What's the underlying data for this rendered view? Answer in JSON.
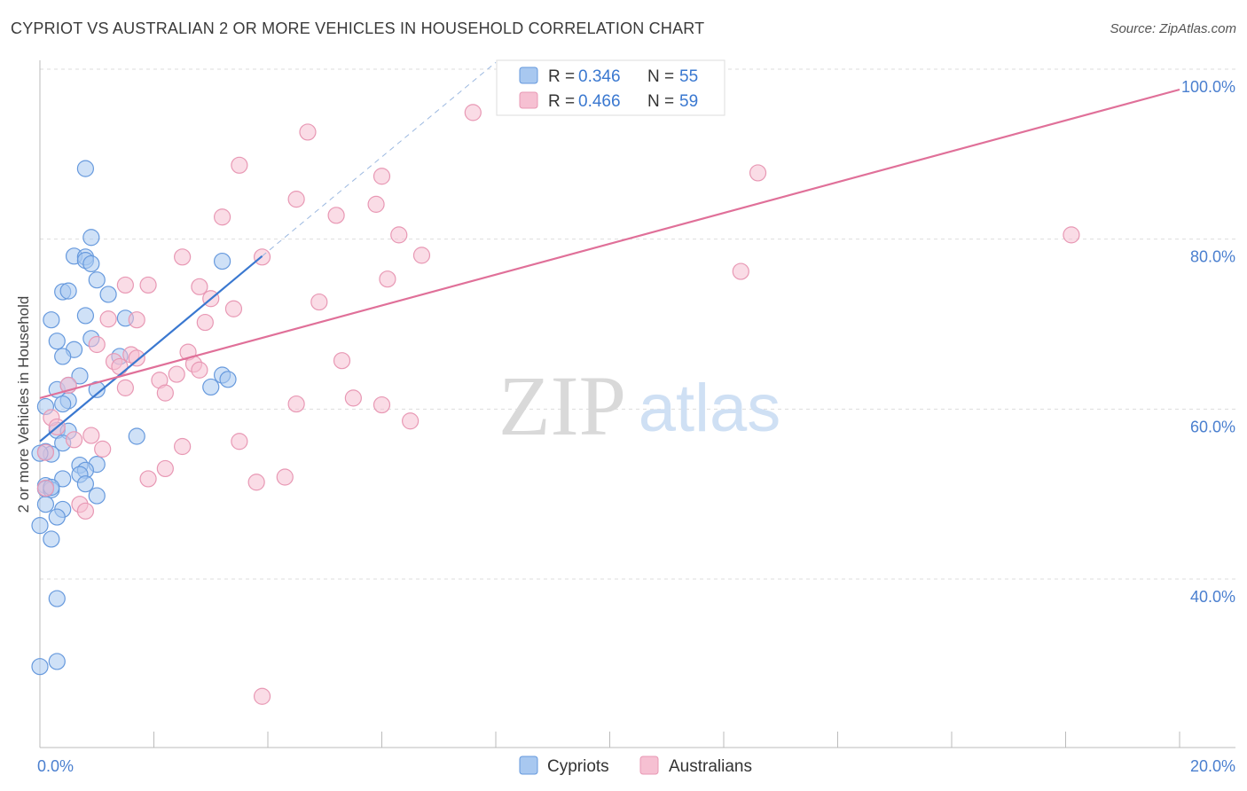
{
  "title": "CYPRIOT VS AUSTRALIAN 2 OR MORE VEHICLES IN HOUSEHOLD CORRELATION CHART",
  "source": "Source: ZipAtlas.com",
  "watermark": {
    "zip": "ZIP",
    "atlas": "atlas"
  },
  "chart_data": {
    "type": "scatter",
    "title": "CYPRIOT VS AUSTRALIAN 2 OR MORE VEHICLES IN HOUSEHOLD CORRELATION CHART",
    "xlabel": "",
    "ylabel": "2 or more Vehicles in Household",
    "xlim": [
      0,
      20
    ],
    "ylim": [
      22,
      101
    ],
    "x_tick_labels": [
      {
        "value": 0,
        "label": "0.0%"
      },
      {
        "value": 20,
        "label": "20.0%"
      }
    ],
    "y_tick_labels": [
      {
        "value": 40,
        "label": "40.0%"
      },
      {
        "value": 60,
        "label": "60.0%"
      },
      {
        "value": 80,
        "label": "80.0%"
      },
      {
        "value": 100,
        "label": "100.0%"
      }
    ],
    "y_gridlines": [
      40,
      60,
      80,
      100
    ],
    "x_minor_ticks": [
      0,
      2,
      4,
      6,
      8,
      10,
      12,
      14,
      16,
      18,
      20
    ],
    "legend": [
      {
        "name": "Cypriots",
        "r_label": "R = ",
        "r": "0.346",
        "n_label": "N = ",
        "n": "55"
      },
      {
        "name": "Australians",
        "r_label": "R = ",
        "r": "0.466",
        "n_label": "N = ",
        "n": "59"
      }
    ],
    "colors": {
      "Cypriots": {
        "fill": "#a8c8f0",
        "stroke": "#6699dd",
        "line": "#3a78d0"
      },
      "Australians": {
        "fill": "#f6c0d2",
        "stroke": "#e898b4",
        "line": "#e07099"
      },
      "axis_text": "#4a7fcf",
      "grid": "#dddddd"
    },
    "series": [
      {
        "name": "Cypriots",
        "trend": {
          "x1": 0.0,
          "y1": 56.2,
          "x2": 3.9,
          "y2": 78.0,
          "dash_to_x": 8.0,
          "dash_to_y": 100.8
        },
        "points": [
          [
            0.8,
            88.3
          ],
          [
            0.9,
            80.2
          ],
          [
            0.6,
            78.0
          ],
          [
            0.8,
            77.9
          ],
          [
            0.8,
            77.5
          ],
          [
            3.2,
            77.4
          ],
          [
            0.9,
            77.1
          ],
          [
            1.0,
            75.2
          ],
          [
            0.4,
            73.8
          ],
          [
            0.5,
            73.9
          ],
          [
            1.2,
            73.5
          ],
          [
            0.8,
            71.0
          ],
          [
            0.2,
            70.5
          ],
          [
            1.5,
            70.7
          ],
          [
            0.3,
            68.0
          ],
          [
            0.9,
            68.3
          ],
          [
            0.6,
            67.0
          ],
          [
            0.4,
            66.2
          ],
          [
            1.4,
            66.2
          ],
          [
            0.7,
            63.9
          ],
          [
            3.2,
            64.0
          ],
          [
            3.3,
            63.5
          ],
          [
            0.3,
            62.3
          ],
          [
            1.0,
            62.3
          ],
          [
            3.0,
            62.6
          ],
          [
            0.5,
            62.8
          ],
          [
            0.5,
            61.0
          ],
          [
            0.4,
            60.6
          ],
          [
            0.1,
            60.3
          ],
          [
            0.3,
            57.5
          ],
          [
            0.5,
            57.4
          ],
          [
            0.4,
            56.0
          ],
          [
            1.7,
            56.8
          ],
          [
            0.1,
            55.0
          ],
          [
            0.2,
            54.7
          ],
          [
            1.0,
            53.5
          ],
          [
            0.7,
            53.4
          ],
          [
            0.8,
            52.8
          ],
          [
            0.7,
            52.3
          ],
          [
            0.4,
            51.8
          ],
          [
            0.8,
            51.2
          ],
          [
            0.1,
            51.0
          ],
          [
            0.1,
            50.6
          ],
          [
            0.2,
            50.5
          ],
          [
            0.2,
            50.8
          ],
          [
            1.0,
            49.8
          ],
          [
            0.1,
            48.8
          ],
          [
            0.4,
            48.2
          ],
          [
            0.3,
            47.3
          ],
          [
            0.0,
            46.3
          ],
          [
            0.2,
            44.7
          ],
          [
            0.3,
            37.7
          ],
          [
            0.3,
            30.3
          ],
          [
            0.0,
            29.7
          ],
          [
            0.0,
            54.8
          ]
        ]
      },
      {
        "name": "Australians",
        "trend": {
          "x1": 0.0,
          "y1": 61.3,
          "x2": 20.0,
          "y2": 97.6
        },
        "points": [
          [
            7.6,
            94.9
          ],
          [
            4.7,
            92.6
          ],
          [
            3.5,
            88.7
          ],
          [
            12.6,
            87.8
          ],
          [
            6.0,
            87.4
          ],
          [
            4.5,
            84.7
          ],
          [
            5.9,
            84.1
          ],
          [
            3.2,
            82.6
          ],
          [
            5.2,
            82.8
          ],
          [
            6.3,
            80.5
          ],
          [
            18.1,
            80.5
          ],
          [
            2.5,
            77.9
          ],
          [
            3.9,
            77.9
          ],
          [
            6.7,
            78.1
          ],
          [
            12.3,
            76.2
          ],
          [
            6.1,
            75.3
          ],
          [
            1.5,
            74.6
          ],
          [
            1.9,
            74.6
          ],
          [
            2.8,
            74.4
          ],
          [
            3.0,
            73.0
          ],
          [
            4.9,
            72.6
          ],
          [
            3.4,
            71.8
          ],
          [
            1.2,
            70.6
          ],
          [
            1.7,
            70.5
          ],
          [
            2.9,
            70.2
          ],
          [
            1.0,
            67.6
          ],
          [
            2.6,
            66.7
          ],
          [
            1.6,
            66.4
          ],
          [
            1.7,
            66.0
          ],
          [
            1.3,
            65.6
          ],
          [
            2.7,
            65.3
          ],
          [
            5.3,
            65.7
          ],
          [
            1.4,
            65.0
          ],
          [
            2.8,
            64.6
          ],
          [
            2.4,
            64.1
          ],
          [
            2.1,
            63.4
          ],
          [
            0.5,
            62.8
          ],
          [
            1.5,
            62.5
          ],
          [
            2.2,
            61.9
          ],
          [
            5.5,
            61.3
          ],
          [
            4.5,
            60.6
          ],
          [
            6.0,
            60.5
          ],
          [
            0.2,
            59.0
          ],
          [
            6.5,
            58.6
          ],
          [
            0.3,
            57.9
          ],
          [
            0.9,
            56.9
          ],
          [
            0.6,
            56.4
          ],
          [
            3.5,
            56.2
          ],
          [
            2.5,
            55.6
          ],
          [
            1.1,
            55.3
          ],
          [
            0.1,
            54.9
          ],
          [
            2.2,
            53.0
          ],
          [
            4.3,
            52.0
          ],
          [
            1.9,
            51.8
          ],
          [
            3.8,
            51.4
          ],
          [
            0.1,
            50.7
          ],
          [
            0.7,
            48.8
          ],
          [
            0.8,
            48.0
          ],
          [
            3.9,
            26.2
          ]
        ]
      }
    ]
  }
}
